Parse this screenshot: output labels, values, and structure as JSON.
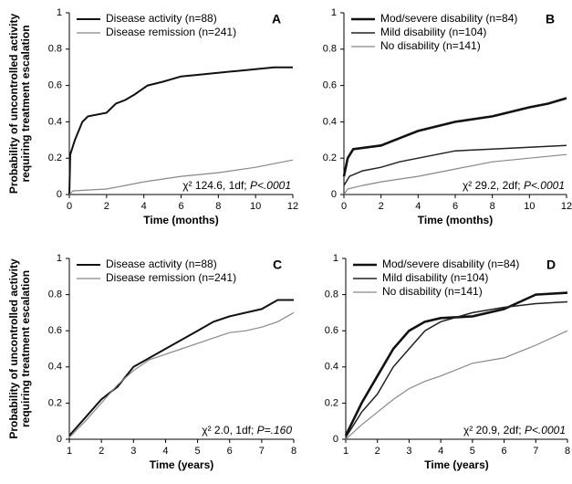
{
  "chart_data": [
    {
      "type": "line",
      "panel_label": "A",
      "ylabel": [
        "Probability of uncontrolled activity",
        "requiring treatment escalation"
      ],
      "xlabel": "Time (months)",
      "xlim": [
        0,
        12
      ],
      "xticks": [
        0,
        2,
        4,
        6,
        8,
        10,
        12
      ],
      "ylim": [
        0,
        1
      ],
      "yticks": [
        0,
        0.2,
        0.4,
        0.6,
        0.8,
        1
      ],
      "annotation": "χ² 124.6, 1df; ",
      "annotation_p": "P<.0001",
      "legend": "upper left",
      "series": [
        {
          "name": "Disease activity (n=88)",
          "color": "#111111",
          "line_width": 2,
          "x": [
            0,
            0.05,
            0.3,
            0.7,
            1,
            2,
            2.5,
            3,
            3.5,
            4.2,
            5,
            6,
            7,
            9,
            11,
            12
          ],
          "values": [
            0,
            0.22,
            0.3,
            0.4,
            0.43,
            0.45,
            0.5,
            0.52,
            0.55,
            0.6,
            0.62,
            0.65,
            0.66,
            0.68,
            0.7,
            0.7
          ]
        },
        {
          "name": "Disease remission (n=241)",
          "color": "#888888",
          "line_width": 1.2,
          "x": [
            0,
            0.2,
            2,
            3,
            4,
            6,
            8,
            10,
            11.5,
            12
          ],
          "values": [
            0,
            0.02,
            0.03,
            0.05,
            0.07,
            0.1,
            0.12,
            0.15,
            0.18,
            0.19
          ]
        }
      ]
    },
    {
      "type": "line",
      "panel_label": "B",
      "xlabel": "Time (months)",
      "xlim": [
        0,
        12
      ],
      "xticks": [
        0,
        2,
        4,
        6,
        8,
        10,
        12
      ],
      "ylim": [
        0,
        1
      ],
      "yticks": [
        0,
        0.2,
        0.4,
        0.6,
        0.8,
        1
      ],
      "annotation": "χ² 29.2, 2df; ",
      "annotation_p": "P<.0001",
      "legend": "upper left",
      "series": [
        {
          "name": "Mod/severe  disability (n=84)",
          "color": "#111111",
          "line_width": 2.6,
          "x": [
            0,
            0.2,
            0.5,
            2,
            3,
            4,
            6,
            8,
            10,
            11,
            12
          ],
          "values": [
            0.1,
            0.2,
            0.25,
            0.27,
            0.31,
            0.35,
            0.4,
            0.43,
            0.48,
            0.5,
            0.53
          ]
        },
        {
          "name": "Mild disability (n=104)",
          "color": "#222222",
          "line_width": 1.5,
          "x": [
            0,
            0.3,
            1,
            2,
            3,
            4,
            6,
            8,
            10,
            12
          ],
          "values": [
            0.05,
            0.1,
            0.13,
            0.15,
            0.18,
            0.2,
            0.24,
            0.25,
            0.26,
            0.27
          ]
        },
        {
          "name": "No disability (n=141)",
          "color": "#888888",
          "line_width": 1.2,
          "x": [
            0,
            0.2,
            1,
            2,
            4,
            6,
            8,
            10,
            12
          ],
          "values": [
            0,
            0.03,
            0.05,
            0.07,
            0.1,
            0.14,
            0.18,
            0.2,
            0.22
          ]
        }
      ]
    },
    {
      "type": "line",
      "panel_label": "C",
      "ylabel": [
        "Probability of uncontrolled activity",
        "requiring treatment escalation"
      ],
      "xlabel": "Time (years)",
      "xlim": [
        1,
        8
      ],
      "xticks": [
        1,
        2,
        3,
        4,
        5,
        6,
        7,
        8
      ],
      "ylim": [
        0,
        1
      ],
      "yticks": [
        0,
        0.2,
        0.4,
        0.6,
        0.8,
        1
      ],
      "annotation": "χ² 2.0, 1df; ",
      "annotation_p": "P=.160",
      "legend": "upper left",
      "series": [
        {
          "name": "Disease activity (n=88)",
          "color": "#111111",
          "line_width": 2,
          "x": [
            1,
            1.5,
            2,
            2.5,
            3,
            3.5,
            4,
            4.5,
            5,
            5.5,
            6,
            6.5,
            7,
            7.5,
            8
          ],
          "values": [
            0.02,
            0.12,
            0.22,
            0.29,
            0.4,
            0.45,
            0.5,
            0.55,
            0.6,
            0.65,
            0.68,
            0.7,
            0.72,
            0.77,
            0.77
          ]
        },
        {
          "name": "Disease remission (n=241)",
          "color": "#888888",
          "line_width": 1.2,
          "x": [
            1,
            1.5,
            2,
            2.5,
            3,
            3.5,
            4,
            4.5,
            5,
            5.5,
            6,
            6.5,
            7,
            7.5,
            8
          ],
          "values": [
            0.01,
            0.1,
            0.2,
            0.3,
            0.38,
            0.44,
            0.47,
            0.5,
            0.53,
            0.56,
            0.59,
            0.6,
            0.62,
            0.65,
            0.7
          ]
        }
      ]
    },
    {
      "type": "line",
      "panel_label": "D",
      "xlabel": "Time (years)",
      "xlim": [
        1,
        8
      ],
      "xticks": [
        1,
        2,
        3,
        4,
        5,
        6,
        7,
        8
      ],
      "ylim": [
        0,
        1
      ],
      "yticks": [
        0,
        0.2,
        0.4,
        0.6,
        0.8,
        1
      ],
      "annotation": "χ² 20.9, 2df; ",
      "annotation_p": "P<.0001",
      "legend": "upper left",
      "series": [
        {
          "name": "Mod/severe  disability (n=84)",
          "color": "#111111",
          "line_width": 2.6,
          "x": [
            1,
            1.5,
            2,
            2.5,
            3,
            3.5,
            4,
            5,
            6,
            7,
            8
          ],
          "values": [
            0.02,
            0.2,
            0.35,
            0.5,
            0.6,
            0.65,
            0.67,
            0.68,
            0.72,
            0.8,
            0.81
          ]
        },
        {
          "name": "Mild disability (n=104)",
          "color": "#222222",
          "line_width": 1.5,
          "x": [
            1,
            1.5,
            2,
            2.5,
            3,
            3.5,
            4,
            5,
            6,
            7,
            8
          ],
          "values": [
            0.01,
            0.15,
            0.25,
            0.4,
            0.5,
            0.6,
            0.65,
            0.7,
            0.73,
            0.75,
            0.76
          ]
        },
        {
          "name": "No disability (n=141)",
          "color": "#888888",
          "line_width": 1.2,
          "x": [
            1,
            1.5,
            2,
            2.5,
            3,
            3.5,
            4,
            5,
            6,
            7,
            8
          ],
          "values": [
            0,
            0.08,
            0.15,
            0.22,
            0.28,
            0.32,
            0.35,
            0.42,
            0.45,
            0.52,
            0.6
          ]
        }
      ]
    }
  ]
}
